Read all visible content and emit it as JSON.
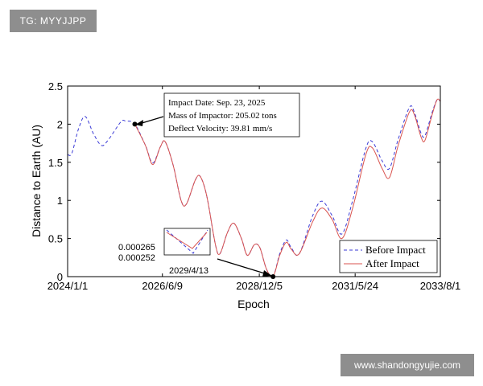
{
  "watermarks": {
    "top_left": "TG: MYYJJPP",
    "bottom_right": "www.shandongyujie.com"
  },
  "chart_data": {
    "type": "line",
    "xlabel": "Epoch",
    "ylabel": "Distance to Earth (AU)",
    "x_range": [
      "2024/1/1",
      "2033/8/1"
    ],
    "ylim": [
      0,
      2.5
    ],
    "x_ticks": [
      "2024/1/1",
      "2026/6/9",
      "2028/12/5",
      "2031/5/24",
      "2033/8/1"
    ],
    "y_ticks": [
      "0",
      "0.5",
      "1",
      "1.5",
      "2",
      "2.5"
    ],
    "grid": false,
    "legend_position": "bottom-right",
    "series": [
      {
        "name": "Before Impact",
        "style": "dashed",
        "color": "#3a3ad6",
        "points": [
          [
            "2024-01-01",
            1.6
          ],
          [
            "2024-02-10",
            1.62
          ],
          [
            "2024-04-15",
            1.95
          ],
          [
            "2024-06-15",
            2.1
          ],
          [
            "2024-09-01",
            1.87
          ],
          [
            "2024-11-15",
            1.72
          ],
          [
            "2025-01-20",
            1.8
          ],
          [
            "2025-05-15",
            2.03
          ],
          [
            "2025-07-01",
            2.04
          ],
          [
            "2025-09-23",
            2.0
          ],
          [
            "2026-01-01",
            1.72
          ],
          [
            "2026-03-10",
            1.49
          ],
          [
            "2026-05-20",
            1.7
          ],
          [
            "2026-07-05",
            1.77
          ],
          [
            "2026-09-20",
            1.45
          ],
          [
            "2026-12-01",
            1.0
          ],
          [
            "2027-01-20",
            0.95
          ],
          [
            "2027-04-15",
            1.27
          ],
          [
            "2027-06-01",
            1.31
          ],
          [
            "2027-08-01",
            1.05
          ],
          [
            "2027-10-20",
            0.42
          ],
          [
            "2027-12-01",
            0.3
          ],
          [
            "2028-02-10",
            0.58
          ],
          [
            "2028-04-10",
            0.7
          ],
          [
            "2028-06-20",
            0.5
          ],
          [
            "2028-08-15",
            0.28
          ],
          [
            "2028-10-20",
            0.42
          ],
          [
            "2028-12-10",
            0.38
          ],
          [
            "2029-02-10",
            0.1
          ],
          [
            "2029-04-13",
            0.000265
          ],
          [
            "2029-06-15",
            0.3
          ],
          [
            "2029-08-15",
            0.48
          ],
          [
            "2029-10-01",
            0.38
          ],
          [
            "2029-12-15",
            0.3
          ],
          [
            "2030-04-20",
            0.8
          ],
          [
            "2030-07-15",
            0.99
          ],
          [
            "2030-10-20",
            0.8
          ],
          [
            "2031-01-20",
            0.56
          ],
          [
            "2031-05-01",
            1.0
          ],
          [
            "2031-09-01",
            1.68
          ],
          [
            "2031-11-01",
            1.77
          ],
          [
            "2032-02-01",
            1.52
          ],
          [
            "2032-04-10",
            1.42
          ],
          [
            "2032-07-01",
            1.8
          ],
          [
            "2032-10-15",
            2.22
          ],
          [
            "2032-12-01",
            2.15
          ],
          [
            "2033-02-01",
            1.88
          ],
          [
            "2033-03-10",
            1.85
          ],
          [
            "2033-05-15",
            2.15
          ],
          [
            "2033-07-01",
            2.32
          ],
          [
            "2033-08-01",
            2.3
          ]
        ]
      },
      {
        "name": "After Impact",
        "style": "solid",
        "color": "#d9534f",
        "points": [
          [
            "2025-09-23",
            2.0
          ],
          [
            "2026-01-01",
            1.72
          ],
          [
            "2026-03-10",
            1.47
          ],
          [
            "2026-05-20",
            1.7
          ],
          [
            "2026-07-05",
            1.77
          ],
          [
            "2026-09-20",
            1.45
          ],
          [
            "2026-12-01",
            1.0
          ],
          [
            "2027-01-20",
            0.95
          ],
          [
            "2027-04-15",
            1.27
          ],
          [
            "2027-06-01",
            1.31
          ],
          [
            "2027-08-01",
            1.05
          ],
          [
            "2027-10-20",
            0.42
          ],
          [
            "2027-12-01",
            0.3
          ],
          [
            "2028-02-10",
            0.58
          ],
          [
            "2028-04-10",
            0.7
          ],
          [
            "2028-06-20",
            0.5
          ],
          [
            "2028-08-15",
            0.28
          ],
          [
            "2028-10-20",
            0.42
          ],
          [
            "2028-12-10",
            0.38
          ],
          [
            "2029-02-10",
            0.1
          ],
          [
            "2029-04-13",
            0.000252
          ],
          [
            "2029-06-15",
            0.28
          ],
          [
            "2029-08-15",
            0.45
          ],
          [
            "2029-10-01",
            0.36
          ],
          [
            "2029-12-15",
            0.3
          ],
          [
            "2030-04-20",
            0.72
          ],
          [
            "2030-07-15",
            0.9
          ],
          [
            "2030-10-20",
            0.75
          ],
          [
            "2031-01-20",
            0.5
          ],
          [
            "2031-05-01",
            0.9
          ],
          [
            "2031-09-01",
            1.6
          ],
          [
            "2031-11-01",
            1.69
          ],
          [
            "2032-02-01",
            1.42
          ],
          [
            "2032-04-10",
            1.3
          ],
          [
            "2032-07-01",
            1.72
          ],
          [
            "2032-10-15",
            2.16
          ],
          [
            "2032-12-01",
            2.12
          ],
          [
            "2033-02-01",
            1.83
          ],
          [
            "2033-03-10",
            1.79
          ],
          [
            "2033-05-15",
            2.12
          ],
          [
            "2033-07-01",
            2.32
          ],
          [
            "2033-08-01",
            2.3
          ]
        ]
      }
    ],
    "annotations": {
      "impact": {
        "date": "2025-09-23",
        "value": 2.0,
        "lines": [
          "Impact Date: Sep. 23, 2025",
          "Mass of Impactor: 205.02 tons",
          "Deflect Velocity: 39.81 mm/s"
        ]
      },
      "closest_approach": {
        "date": "2029-04-13",
        "value": 0.0,
        "inset_label": "2029/4/13",
        "before_value_label": "0.000265",
        "after_value_label": "0.000252"
      }
    }
  }
}
